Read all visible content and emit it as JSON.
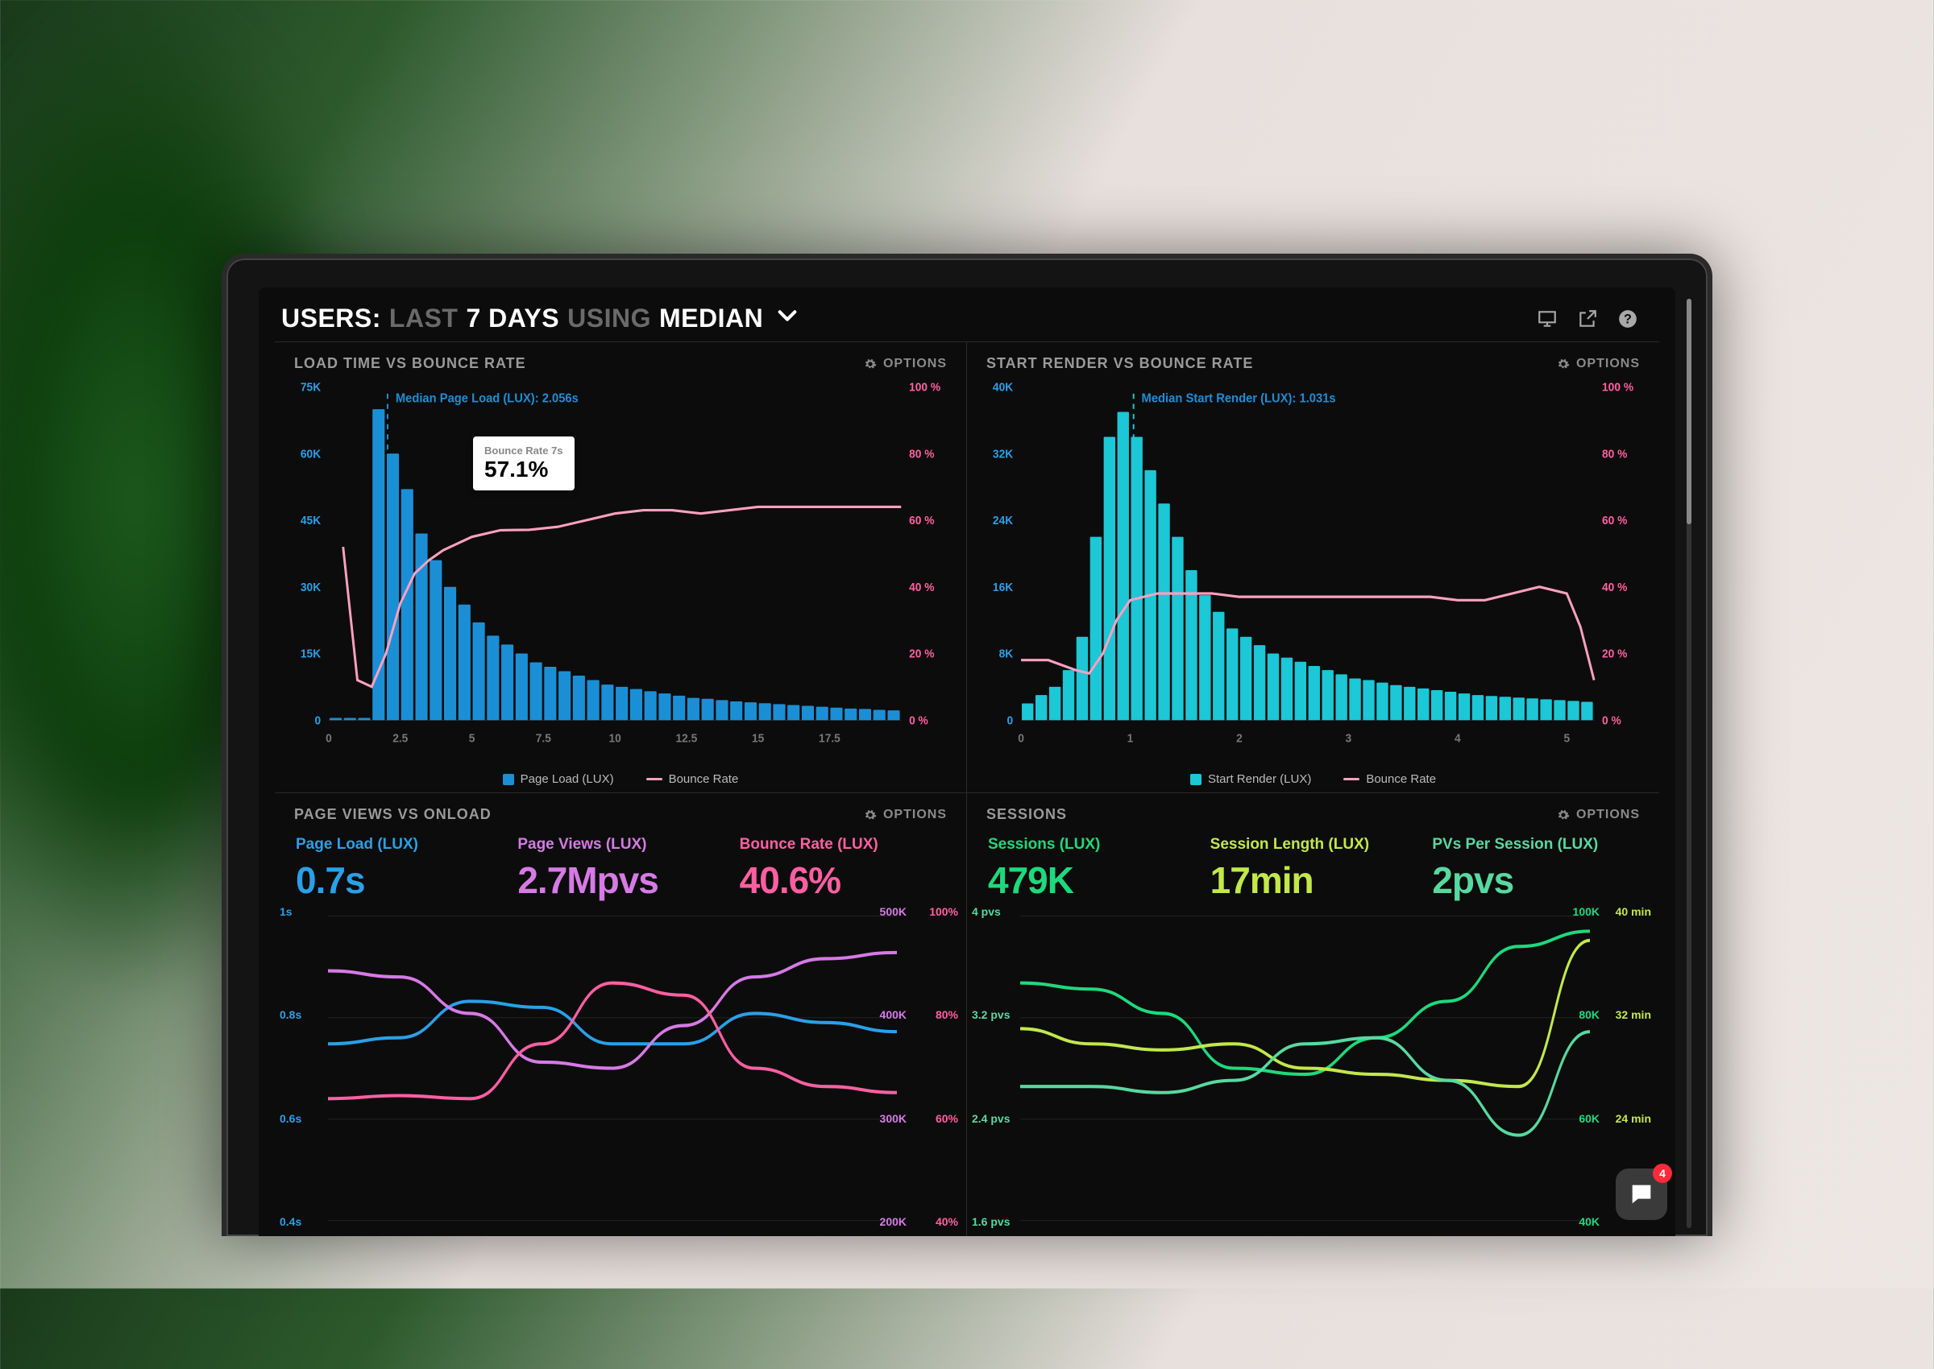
{
  "header": {
    "title_prefix": "USERS:",
    "title_dim1": "LAST",
    "title_bright1": "7 DAYS",
    "title_dim2": "USING",
    "title_bright2": "MEDIAN"
  },
  "chat_badge": "4",
  "options_label": "OPTIONS",
  "panel1": {
    "title": "LOAD TIME VS BOUNCE RATE",
    "median_label": "Median Page Load (LUX): 2.056s",
    "tooltip_label": "Bounce Rate 7s",
    "tooltip_value": "57.1%",
    "left_axis": {
      "ticks": [
        "0",
        "15K",
        "30K",
        "45K",
        "60K",
        "75K"
      ],
      "values": [
        0,
        15,
        30,
        45,
        60,
        75
      ],
      "color": "#2aa0e8"
    },
    "right_axis": {
      "ticks": [
        "0 %",
        "20 %",
        "40 %",
        "60 %",
        "80 %",
        "100 %"
      ],
      "values": [
        0,
        20,
        40,
        60,
        80,
        100
      ],
      "color": "#ff5fa2"
    },
    "x_axis": {
      "ticks": [
        "0",
        "2.5",
        "5",
        "7.5",
        "10",
        "12.5",
        "15",
        "17.5"
      ],
      "max": 20
    },
    "bars": {
      "color": "#1b8fd6",
      "step": 0.5,
      "values": [
        0.5,
        0.5,
        0.5,
        70,
        60,
        52,
        42,
        36,
        30,
        26,
        22,
        19,
        17,
        15,
        13,
        12,
        11,
        10,
        9,
        8,
        7.5,
        7,
        6.5,
        6,
        5.5,
        5,
        4.8,
        4.5,
        4.2,
        4,
        3.8,
        3.6,
        3.4,
        3.2,
        3,
        2.8,
        2.6,
        2.5,
        2.3,
        2.2
      ]
    },
    "line": {
      "color": "#ffa0c0",
      "points": [
        [
          0.5,
          52
        ],
        [
          1,
          12
        ],
        [
          1.5,
          10
        ],
        [
          2,
          20
        ],
        [
          2.5,
          35
        ],
        [
          3,
          44
        ],
        [
          3.5,
          48
        ],
        [
          4,
          51
        ],
        [
          5,
          55
        ],
        [
          6,
          57
        ],
        [
          7,
          57.1
        ],
        [
          8,
          58
        ],
        [
          9,
          60
        ],
        [
          10,
          62
        ],
        [
          11,
          63
        ],
        [
          12,
          63
        ],
        [
          13,
          62
        ],
        [
          14,
          63
        ],
        [
          15,
          64
        ],
        [
          16,
          64
        ],
        [
          17,
          64
        ],
        [
          18,
          64
        ],
        [
          19,
          64
        ],
        [
          20,
          64
        ]
      ]
    },
    "median_x": 2.056,
    "legend": [
      {
        "swatch": "square",
        "color": "#1b8fd6",
        "label": "Page Load (LUX)"
      },
      {
        "swatch": "line",
        "color": "#ffa0c0",
        "label": "Bounce Rate"
      }
    ]
  },
  "panel2": {
    "title": "START RENDER VS BOUNCE RATE",
    "median_label": "Median Start Render (LUX): 1.031s",
    "left_axis": {
      "ticks": [
        "0",
        "8K",
        "16K",
        "24K",
        "32K",
        "40K"
      ],
      "values": [
        0,
        8,
        16,
        24,
        32,
        40
      ],
      "color": "#1cc7d6"
    },
    "right_axis": {
      "ticks": [
        "0 %",
        "20 %",
        "40 %",
        "60 %",
        "80 %",
        "100 %"
      ],
      "values": [
        0,
        20,
        40,
        60,
        80,
        100
      ],
      "color": "#ff5fa2"
    },
    "x_axis": {
      "ticks": [
        "0",
        "1",
        "2",
        "3",
        "4",
        "5"
      ],
      "max": 5.25
    },
    "bars": {
      "color": "#1cc7d6",
      "step": 0.125,
      "values": [
        2,
        3,
        4,
        6,
        10,
        22,
        34,
        37,
        34,
        30,
        26,
        22,
        18,
        15,
        13,
        11,
        10,
        9,
        8,
        7.5,
        7,
        6.5,
        6,
        5.5,
        5,
        4.8,
        4.5,
        4.2,
        4,
        3.8,
        3.6,
        3.4,
        3.2,
        3,
        2.9,
        2.8,
        2.7,
        2.6,
        2.5,
        2.4,
        2.3,
        2.2
      ]
    },
    "line": {
      "color": "#ffa0c0",
      "points": [
        [
          0,
          18
        ],
        [
          0.25,
          18
        ],
        [
          0.5,
          15
        ],
        [
          0.625,
          14
        ],
        [
          0.75,
          20
        ],
        [
          0.875,
          30
        ],
        [
          1,
          36
        ],
        [
          1.25,
          38
        ],
        [
          1.5,
          38
        ],
        [
          1.75,
          38
        ],
        [
          2,
          37
        ],
        [
          2.25,
          37
        ],
        [
          2.5,
          37
        ],
        [
          2.75,
          37
        ],
        [
          3,
          37
        ],
        [
          3.25,
          37
        ],
        [
          3.5,
          37
        ],
        [
          3.75,
          37
        ],
        [
          4,
          36
        ],
        [
          4.25,
          36
        ],
        [
          4.5,
          38
        ],
        [
          4.75,
          40
        ],
        [
          5,
          38
        ],
        [
          5.125,
          28
        ],
        [
          5.25,
          12
        ]
      ]
    },
    "median_x": 1.031,
    "legend": [
      {
        "swatch": "square",
        "color": "#1cc7d6",
        "label": "Start Render (LUX)"
      },
      {
        "swatch": "line",
        "color": "#ffa0c0",
        "label": "Bounce Rate"
      }
    ]
  },
  "panel3": {
    "title": "PAGE VIEWS VS ONLOAD",
    "stats": [
      {
        "label": "Page Load (LUX)",
        "value": "0.7s",
        "label_color": "#2aa0e8",
        "value_color": "#2aa0e8"
      },
      {
        "label": "Page Views (LUX)",
        "value": "2.7Mpvs",
        "label_color": "#d67ae6",
        "value_color": "#d67ae6"
      },
      {
        "label": "Bounce Rate (LUX)",
        "value": "40.6%",
        "label_color": "#ff5fa2",
        "value_color": "#ff5fa2"
      }
    ],
    "left_axis": {
      "ticks": [
        "0.4s",
        "0.6s",
        "0.8s",
        "1s"
      ],
      "values": [
        0.4,
        0.6,
        0.8,
        1.0
      ],
      "color": "#2aa0e8"
    },
    "right_axis_a": {
      "ticks": [
        "200K",
        "300K",
        "400K",
        "500K"
      ],
      "color": "#d67ae6"
    },
    "right_axis_b": {
      "ticks": [
        "40%",
        "60%",
        "80%",
        "100%"
      ],
      "color": "#ff5fa2"
    },
    "lines": [
      {
        "color": "#2aa0e8",
        "points": [
          [
            0,
            0.58
          ],
          [
            1,
            0.6
          ],
          [
            2,
            0.72
          ],
          [
            3,
            0.7
          ],
          [
            4,
            0.58
          ],
          [
            5,
            0.58
          ],
          [
            6,
            0.68
          ],
          [
            7,
            0.65
          ],
          [
            8,
            0.62
          ]
        ]
      },
      {
        "color": "#d67ae6",
        "points": [
          [
            0,
            0.82
          ],
          [
            1,
            0.8
          ],
          [
            2,
            0.68
          ],
          [
            3,
            0.52
          ],
          [
            4,
            0.5
          ],
          [
            5,
            0.64
          ],
          [
            6,
            0.8
          ],
          [
            7,
            0.86
          ],
          [
            8,
            0.88
          ]
        ]
      },
      {
        "color": "#ff5fa2",
        "points": [
          [
            0,
            0.4
          ],
          [
            1,
            0.41
          ],
          [
            2,
            0.4
          ],
          [
            3,
            0.58
          ],
          [
            4,
            0.78
          ],
          [
            5,
            0.74
          ],
          [
            6,
            0.5
          ],
          [
            7,
            0.44
          ],
          [
            8,
            0.42
          ]
        ]
      }
    ],
    "x_max": 8
  },
  "panel4": {
    "title": "SESSIONS",
    "stats": [
      {
        "label": "Sessions (LUX)",
        "value": "479K",
        "label_color": "#1ed97d",
        "value_color": "#1ed97d"
      },
      {
        "label": "Session Length (LUX)",
        "value": "17min",
        "label_color": "#c2e84a",
        "value_color": "#c2e84a"
      },
      {
        "label": "PVs Per Session (LUX)",
        "value": "2pvs",
        "label_color": "#57d9a0",
        "value_color": "#57d9a0"
      }
    ],
    "left_axis": {
      "ticks": [
        "1.6 pvs",
        "2.4 pvs",
        "3.2 pvs",
        "4 pvs"
      ],
      "values": [
        1.6,
        2.4,
        3.2,
        4.0
      ],
      "color": "#57d9a0"
    },
    "right_axis_a": {
      "ticks": [
        "40K",
        "60K",
        "80K",
        "100K"
      ],
      "color": "#1ed97d"
    },
    "right_axis_b": {
      "ticks": [
        "",
        "24 min",
        "32 min",
        "40 min"
      ],
      "color": "#c2e84a"
    },
    "lines": [
      {
        "color": "#1ed97d",
        "points": [
          [
            0,
            0.78
          ],
          [
            1,
            0.76
          ],
          [
            2,
            0.68
          ],
          [
            3,
            0.5
          ],
          [
            4,
            0.48
          ],
          [
            5,
            0.6
          ],
          [
            6,
            0.72
          ],
          [
            7,
            0.9
          ],
          [
            8,
            0.95
          ]
        ]
      },
      {
        "color": "#c2e84a",
        "points": [
          [
            0,
            0.63
          ],
          [
            1,
            0.58
          ],
          [
            2,
            0.56
          ],
          [
            3,
            0.58
          ],
          [
            4,
            0.5
          ],
          [
            5,
            0.48
          ],
          [
            6,
            0.46
          ],
          [
            7,
            0.44
          ],
          [
            8,
            0.92
          ]
        ]
      },
      {
        "color": "#57d9a0",
        "points": [
          [
            0,
            0.44
          ],
          [
            1,
            0.44
          ],
          [
            2,
            0.42
          ],
          [
            3,
            0.46
          ],
          [
            4,
            0.58
          ],
          [
            5,
            0.6
          ],
          [
            6,
            0.46
          ],
          [
            7,
            0.28
          ],
          [
            8,
            0.62
          ]
        ]
      }
    ],
    "x_max": 8
  }
}
